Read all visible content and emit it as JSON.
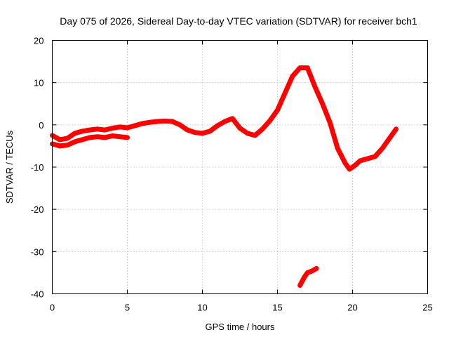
{
  "chart_data": {
    "type": "line",
    "title": "Day 075 of 2026, Sidereal Day-to-day VTEC variation (SDTVAR) for receiver bch1",
    "xlabel": "GPS time / hours",
    "ylabel": "SDTVAR / TECUs",
    "xlim": [
      0,
      25
    ],
    "ylim": [
      -40,
      20
    ],
    "xticks": [
      0,
      5,
      10,
      15,
      20,
      25
    ],
    "yticks": [
      -40,
      -30,
      -20,
      -10,
      0,
      10,
      20
    ],
    "xtick_labels": [
      "0",
      "5",
      "10",
      "15",
      "20",
      "25"
    ],
    "ytick_labels": [
      "-40",
      "-30",
      "-20",
      "-10",
      "0",
      "10",
      "20"
    ],
    "grid": true,
    "series_color": "#ff0000",
    "series": [
      {
        "name": "main",
        "x": [
          0.0,
          0.5,
          1.0,
          1.5,
          2.0,
          2.5,
          3.0,
          3.5,
          4.0,
          4.5,
          5.0,
          5.5,
          6.0,
          6.5,
          7.0,
          7.5,
          8.0,
          8.5,
          9.0,
          9.5,
          10.0,
          10.5,
          11.0,
          11.5,
          12.0,
          12.5,
          13.0,
          13.5,
          14.0,
          14.5,
          15.0,
          15.5,
          16.0,
          16.5,
          17.0,
          17.5,
          18.0,
          18.5,
          19.0,
          19.5,
          19.8,
          20.2,
          20.5,
          21.0,
          21.5,
          22.0,
          22.5,
          22.9
        ],
        "y": [
          -2.5,
          -3.5,
          -3.2,
          -2.0,
          -1.5,
          -1.2,
          -1.0,
          -1.2,
          -0.8,
          -0.5,
          -0.7,
          -0.2,
          0.3,
          0.6,
          0.8,
          0.9,
          0.8,
          0.0,
          -1.2,
          -1.8,
          -2.0,
          -1.5,
          -0.2,
          0.8,
          1.5,
          -0.8,
          -2.0,
          -2.5,
          -1.0,
          1.0,
          3.5,
          7.5,
          11.5,
          13.5,
          13.5,
          9.0,
          5.0,
          0.5,
          -5.5,
          -9.0,
          -10.5,
          -9.5,
          -8.5,
          -8.0,
          -7.5,
          -5.5,
          -3.0,
          -1.0
        ]
      },
      {
        "name": "lower-branch",
        "x": [
          0.0,
          0.5,
          1.0,
          1.5,
          2.0,
          2.5,
          3.0,
          3.5,
          4.0,
          4.5,
          5.0
        ],
        "y": [
          -4.5,
          -5.0,
          -4.8,
          -4.0,
          -3.5,
          -3.0,
          -2.8,
          -3.0,
          -2.6,
          -2.8,
          -3.0
        ]
      },
      {
        "name": "isolated-segment",
        "x": [
          16.5,
          16.8,
          17.0,
          17.3,
          17.6
        ],
        "y": [
          -38.0,
          -36.0,
          -35.0,
          -34.6,
          -34.0
        ]
      }
    ]
  }
}
